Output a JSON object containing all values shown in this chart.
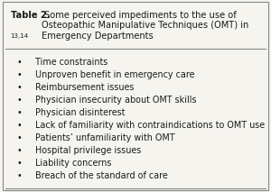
{
  "title_bold": "Table 2.",
  "title_regular": " Some perceived impediments to the use of Osteopathic Manipulative Techniques (OMT) in Emergency Departments",
  "title_superscript": "13,14",
  "items": [
    "Time constraints",
    "Unproven benefit in emergency care",
    "Reimbursement issues",
    "Physician insecurity about OMT skills",
    "Physician disinterest",
    "Lack of familiarity with contraindications to OMT use",
    "Patients’ unfamiliarity with OMT",
    "Hospital privilege issues",
    "Liability concerns",
    "Breach of the standard of care"
  ],
  "background_color": "#f5f4ef",
  "border_color": "#888888",
  "text_color": "#1a1a1a",
  "title_fontsize": 7.1,
  "item_fontsize": 6.9,
  "superscript_fontsize": 5.0,
  "bullet": "•"
}
